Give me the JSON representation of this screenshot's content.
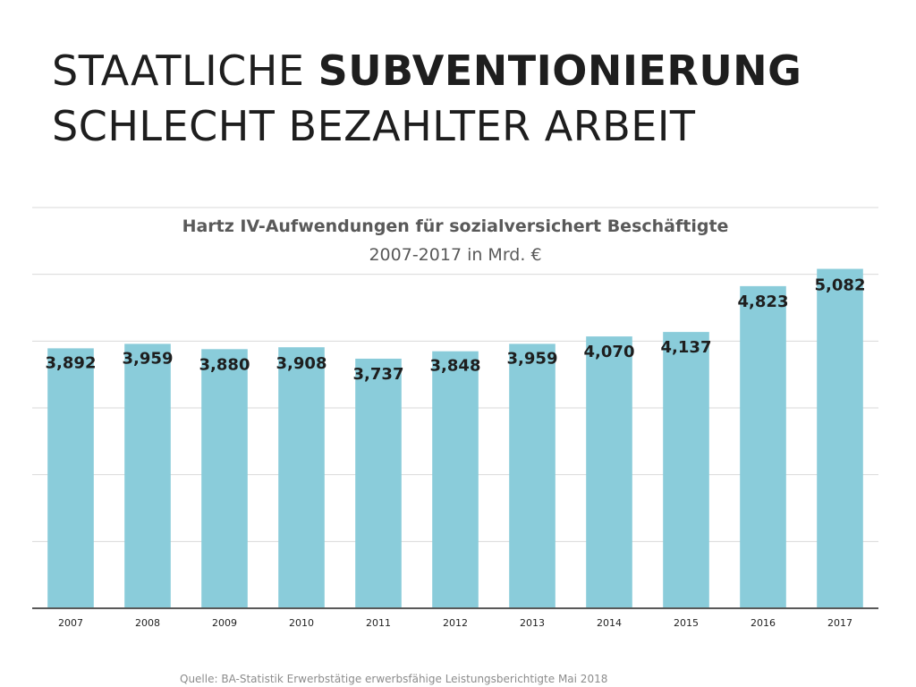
{
  "title": {
    "normal_1": "STAATLICHE ",
    "bold": "SUBVENTIONIERUNG",
    "normal_2": "SCHLECHT BEZAHLTER ARBEIT"
  },
  "source": "Quelle: BA-Statistik Erwerbstätige erwerbsfähige Leistungsberichtigte Mai 2018",
  "colors": {
    "bar": "#8accda",
    "grid": "#d9d9d9",
    "axis": "#595959",
    "label": "#1e1e1e"
  },
  "chart_data": {
    "type": "bar",
    "title": "Hartz IV-Aufwendungen für sozialversichert Beschäftigte",
    "subtitle": "2007-2017 in Mrd. €",
    "categories": [
      "2007",
      "2008",
      "2009",
      "2010",
      "2011",
      "2012",
      "2013",
      "2014",
      "2015",
      "2016",
      "2017"
    ],
    "values": [
      3.892,
      3.959,
      3.88,
      3.908,
      3.737,
      3.848,
      3.959,
      4.07,
      4.137,
      4.823,
      5.082
    ],
    "value_labels": [
      "3,892",
      "3,959",
      "3,880",
      "3,908",
      "3,737",
      "3,848",
      "3,959",
      "4,070",
      "4,137",
      "4,823",
      "5,082"
    ],
    "ylim": [
      0,
      6
    ],
    "grid": true,
    "xlabel": "",
    "ylabel": ""
  }
}
